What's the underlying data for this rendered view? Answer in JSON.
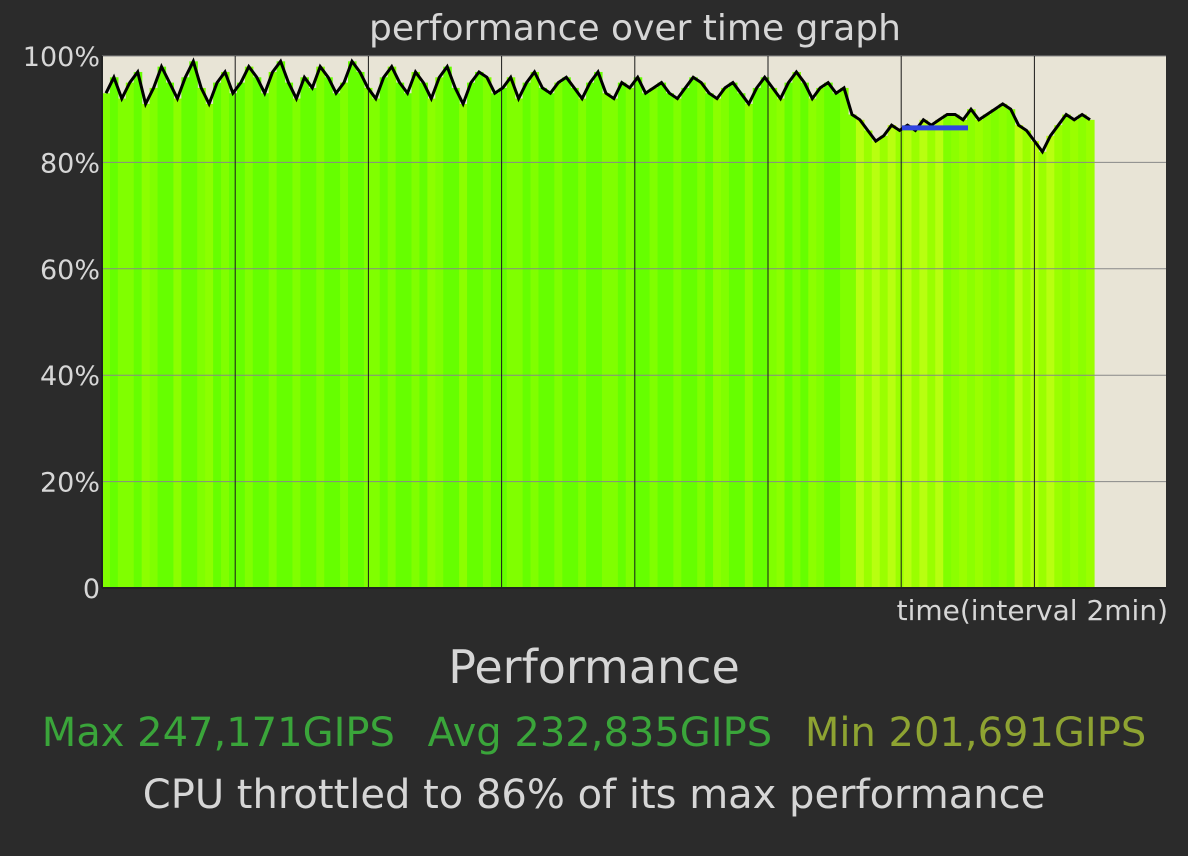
{
  "chart_data": {
    "type": "area",
    "title": "performance over time graph",
    "xlabel": "time(interval 2min)",
    "ylabel": "",
    "ylim": [
      0,
      100
    ],
    "yticks": [
      "0",
      "20%",
      "40%",
      "60%",
      "80%",
      "100%"
    ],
    "x_gridline_count": 7,
    "series": [
      {
        "values": [
          93,
          96,
          92,
          95,
          97,
          91,
          94,
          98,
          95,
          92,
          96,
          99,
          94,
          91,
          95,
          97,
          93,
          95,
          98,
          96,
          93,
          97,
          99,
          95,
          92,
          96,
          94,
          98,
          96,
          93,
          95,
          99,
          97,
          94,
          92,
          96,
          98,
          95,
          93,
          97,
          95,
          92,
          96,
          98,
          94,
          91,
          95,
          97,
          96,
          93,
          94,
          96,
          92,
          95,
          97,
          94,
          93,
          95,
          96,
          94,
          92,
          95,
          97,
          93,
          92,
          95,
          94,
          96,
          93,
          94,
          95,
          93,
          92,
          94,
          96,
          95,
          93,
          92,
          94,
          95,
          93,
          91,
          94,
          96,
          94,
          92,
          95,
          97,
          95,
          92,
          94,
          95,
          93,
          94,
          89,
          88,
          86,
          84,
          85,
          87,
          86,
          87,
          86,
          88,
          87,
          88,
          89,
          89,
          88,
          90,
          88,
          89,
          90,
          91,
          90,
          87,
          86,
          84,
          82,
          85,
          87,
          89,
          88,
          89,
          88
        ]
      }
    ],
    "colors": {
      "plot_background": "#e8e4d6",
      "bar_high": "#66ff00",
      "bar_mid": "#80ff00",
      "bar_low": "#b8ff10",
      "line": "#000000",
      "throttle_marker": "#3045e0",
      "gridline": "#888888"
    }
  },
  "footer": {
    "section_title": "Performance",
    "max": "Max 247,171GIPS",
    "avg": "Avg 232,835GIPS",
    "min": "Min 201,691GIPS",
    "throttle_text": "CPU throttled to 86% of its max performance"
  }
}
